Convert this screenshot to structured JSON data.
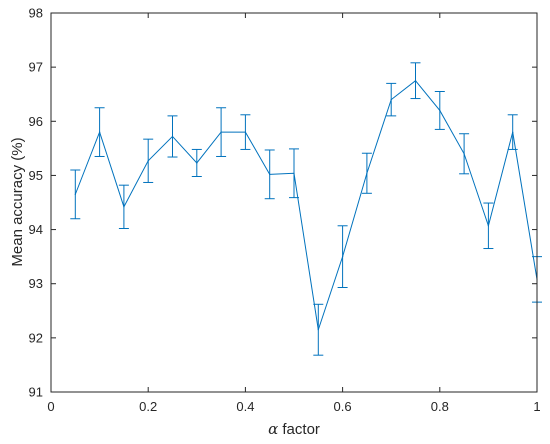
{
  "chart_data": {
    "type": "line",
    "title": "",
    "xlabel_symbol": "α",
    "xlabel_text": " factor",
    "ylabel": "Mean accuracy (%)",
    "xlim": [
      0,
      1
    ],
    "ylim": [
      91,
      98
    ],
    "xticks": [
      0,
      0.2,
      0.4,
      0.6,
      0.8,
      1
    ],
    "xtick_labels": [
      "0",
      "0.2",
      "0.4",
      "0.6",
      "0.8",
      "1"
    ],
    "yticks": [
      91,
      92,
      93,
      94,
      95,
      96,
      97,
      98
    ],
    "ytick_labels": [
      "91",
      "92",
      "93",
      "94",
      "95",
      "96",
      "97",
      "98"
    ],
    "grid": false,
    "line_color": "#0072bd",
    "series": [
      {
        "x": [
          0.05,
          0.1,
          0.15,
          0.2,
          0.25,
          0.3,
          0.35,
          0.4,
          0.45,
          0.5,
          0.55,
          0.6,
          0.65,
          0.7,
          0.75,
          0.8,
          0.85,
          0.9,
          0.95,
          1.0
        ],
        "y": [
          94.65,
          95.8,
          94.42,
          95.27,
          95.72,
          95.23,
          95.8,
          95.8,
          95.02,
          95.04,
          92.15,
          93.5,
          95.04,
          96.4,
          96.75,
          96.2,
          95.4,
          94.07,
          95.8,
          93.08
        ],
        "err": [
          0.45,
          0.45,
          0.4,
          0.4,
          0.38,
          0.25,
          0.45,
          0.32,
          0.45,
          0.45,
          0.47,
          0.57,
          0.37,
          0.3,
          0.33,
          0.35,
          0.37,
          0.42,
          0.32,
          0.42
        ]
      }
    ]
  }
}
